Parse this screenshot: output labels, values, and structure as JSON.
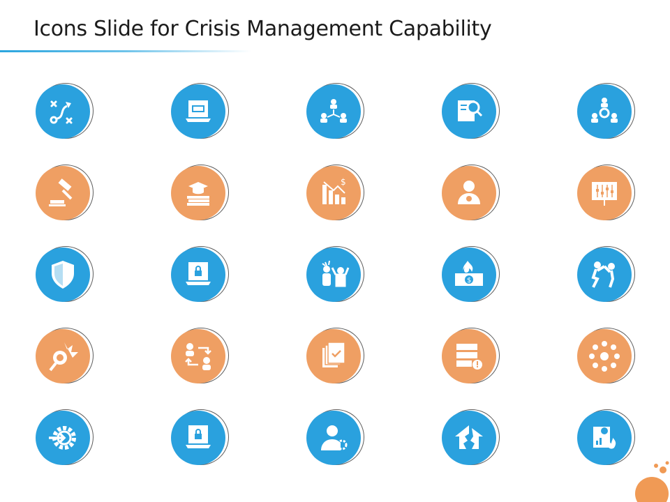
{
  "slide": {
    "title": "Icons Slide for Crisis Management Capability"
  },
  "colors": {
    "blue": "#2aa1de",
    "orange": "#ef9f63",
    "ring": "#5c5c5c",
    "accent_rule": "#2aa5de"
  },
  "icons": [
    {
      "name": "strategy-plan-icon",
      "color": "blue"
    },
    {
      "name": "laptop-document-icon",
      "color": "blue"
    },
    {
      "name": "team-hierarchy-icon",
      "color": "blue"
    },
    {
      "name": "financial-audit-search-icon",
      "color": "blue"
    },
    {
      "name": "team-gear-icon",
      "color": "blue"
    },
    {
      "name": "gavel-icon",
      "color": "orange"
    },
    {
      "name": "graduation-books-icon",
      "color": "orange"
    },
    {
      "name": "declining-revenue-chart-icon",
      "color": "orange"
    },
    {
      "name": "user-alert-icon",
      "color": "orange"
    },
    {
      "name": "presentation-board-icon",
      "color": "orange"
    },
    {
      "name": "shield-icon",
      "color": "blue"
    },
    {
      "name": "laptop-lock-icon",
      "color": "blue"
    },
    {
      "name": "people-panic-icon",
      "color": "blue"
    },
    {
      "name": "burning-money-icon",
      "color": "blue"
    },
    {
      "name": "people-conflict-icon",
      "color": "blue"
    },
    {
      "name": "warning-light-icon",
      "color": "orange"
    },
    {
      "name": "person-exchange-icon",
      "color": "orange"
    },
    {
      "name": "approved-documents-icon",
      "color": "orange"
    },
    {
      "name": "server-alert-icon",
      "color": "orange"
    },
    {
      "name": "team-circle-icon",
      "color": "orange"
    },
    {
      "name": "gear-input-icon",
      "color": "blue"
    },
    {
      "name": "laptop-secure-file-icon",
      "color": "blue"
    },
    {
      "name": "manager-settings-icon",
      "color": "blue"
    },
    {
      "name": "broken-house-icon",
      "color": "blue"
    },
    {
      "name": "financial-fire-report-icon",
      "color": "blue"
    }
  ]
}
